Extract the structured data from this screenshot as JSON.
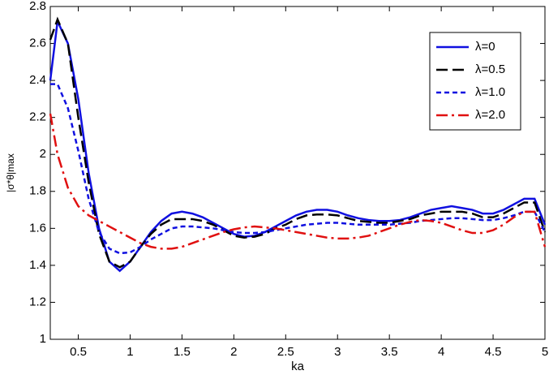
{
  "chart_data": {
    "type": "line",
    "xlabel": "ka",
    "ylabel": "|σ*θ|max",
    "x": [
      0.23,
      0.3,
      0.4,
      0.5,
      0.6,
      0.7,
      0.8,
      0.9,
      1.0,
      1.1,
      1.2,
      1.3,
      1.4,
      1.5,
      1.6,
      1.7,
      1.8,
      1.9,
      2.0,
      2.1,
      2.2,
      2.3,
      2.4,
      2.5,
      2.6,
      2.7,
      2.8,
      2.9,
      3.0,
      3.1,
      3.2,
      3.3,
      3.4,
      3.5,
      3.6,
      3.7,
      3.8,
      3.9,
      4.0,
      4.1,
      4.2,
      4.3,
      4.4,
      4.5,
      4.6,
      4.7,
      4.8,
      4.9,
      5.0
    ],
    "series": [
      {
        "name": "λ=0",
        "color": "#1010e0",
        "dash": "none",
        "values": [
          2.4,
          2.72,
          2.6,
          2.3,
          1.9,
          1.6,
          1.42,
          1.37,
          1.42,
          1.5,
          1.58,
          1.64,
          1.68,
          1.69,
          1.68,
          1.66,
          1.63,
          1.6,
          1.57,
          1.555,
          1.56,
          1.58,
          1.61,
          1.64,
          1.67,
          1.69,
          1.7,
          1.7,
          1.69,
          1.67,
          1.655,
          1.645,
          1.64,
          1.64,
          1.645,
          1.66,
          1.68,
          1.7,
          1.71,
          1.72,
          1.71,
          1.7,
          1.68,
          1.68,
          1.7,
          1.73,
          1.76,
          1.76,
          1.62
        ]
      },
      {
        "name": "λ=0.5",
        "color": "#000000",
        "dash": "14,6",
        "values": [
          2.62,
          2.73,
          2.6,
          2.2,
          1.85,
          1.57,
          1.42,
          1.39,
          1.42,
          1.5,
          1.57,
          1.62,
          1.65,
          1.65,
          1.65,
          1.64,
          1.62,
          1.59,
          1.56,
          1.55,
          1.555,
          1.57,
          1.6,
          1.62,
          1.65,
          1.67,
          1.675,
          1.675,
          1.67,
          1.655,
          1.64,
          1.635,
          1.63,
          1.63,
          1.64,
          1.65,
          1.67,
          1.68,
          1.69,
          1.69,
          1.69,
          1.68,
          1.66,
          1.66,
          1.68,
          1.71,
          1.74,
          1.74,
          1.58
        ]
      },
      {
        "name": "λ=1.0",
        "color": "#1010e0",
        "dash": "6,4",
        "values": [
          2.38,
          2.38,
          2.25,
          2.02,
          1.76,
          1.58,
          1.49,
          1.465,
          1.47,
          1.5,
          1.54,
          1.57,
          1.6,
          1.61,
          1.61,
          1.605,
          1.6,
          1.59,
          1.58,
          1.575,
          1.575,
          1.58,
          1.59,
          1.6,
          1.61,
          1.62,
          1.625,
          1.63,
          1.63,
          1.625,
          1.62,
          1.62,
          1.62,
          1.62,
          1.625,
          1.63,
          1.64,
          1.645,
          1.65,
          1.655,
          1.655,
          1.65,
          1.645,
          1.645,
          1.655,
          1.67,
          1.69,
          1.69,
          1.58
        ]
      },
      {
        "name": "λ=2.0",
        "color": "#e01010",
        "dash": "14,5,3,5",
        "values": [
          2.22,
          2.0,
          1.82,
          1.72,
          1.67,
          1.64,
          1.61,
          1.58,
          1.55,
          1.52,
          1.5,
          1.49,
          1.49,
          1.5,
          1.52,
          1.54,
          1.56,
          1.58,
          1.595,
          1.605,
          1.61,
          1.605,
          1.6,
          1.59,
          1.58,
          1.57,
          1.56,
          1.55,
          1.545,
          1.545,
          1.55,
          1.56,
          1.58,
          1.6,
          1.62,
          1.635,
          1.645,
          1.64,
          1.63,
          1.61,
          1.59,
          1.575,
          1.575,
          1.59,
          1.62,
          1.66,
          1.69,
          1.69,
          1.5
        ]
      }
    ],
    "xlim": [
      0.23,
      5
    ],
    "xticks": [
      0.5,
      1,
      1.5,
      2,
      2.5,
      3,
      3.5,
      4,
      4.5,
      5
    ],
    "ylim": [
      1,
      2.8
    ],
    "yticks": [
      1,
      1.2,
      1.4,
      1.6,
      1.8,
      2,
      2.2,
      2.4,
      2.6,
      2.8
    ],
    "legend": "northeast"
  }
}
